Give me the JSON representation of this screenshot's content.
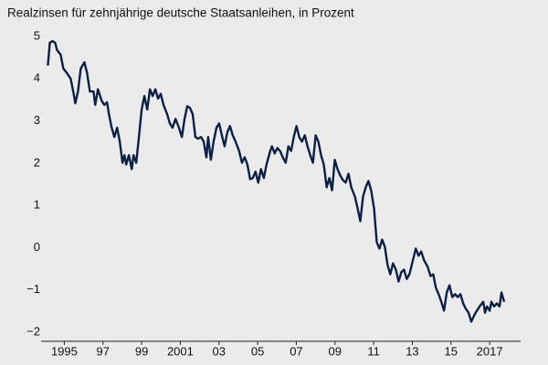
{
  "chart_data": {
    "type": "line",
    "title": "Realzinsen für zehnjährige deutsche Staatsanleihen, in Prozent",
    "x": [
      1994.15,
      1994.25,
      1994.39,
      1994.53,
      1994.62,
      1994.81,
      1994.95,
      1995.14,
      1995.33,
      1995.47,
      1995.57,
      1995.71,
      1995.85,
      1996.04,
      1996.18,
      1996.32,
      1996.51,
      1996.6,
      1996.74,
      1996.93,
      1997.07,
      1997.21,
      1997.31,
      1997.45,
      1997.59,
      1997.73,
      1997.87,
      1998.01,
      1998.11,
      1998.2,
      1998.34,
      1998.49,
      1998.58,
      1998.72,
      1998.86,
      1999.0,
      1999.14,
      1999.29,
      1999.43,
      1999.57,
      1999.71,
      1999.85,
      1999.99,
      2000.13,
      2000.32,
      2000.46,
      2000.6,
      2000.75,
      2000.93,
      2001.08,
      2001.22,
      2001.36,
      2001.5,
      2001.64,
      2001.78,
      2001.92,
      2002.07,
      2002.21,
      2002.35,
      2002.44,
      2002.58,
      2002.72,
      2002.87,
      2003.01,
      2003.15,
      2003.29,
      2003.43,
      2003.57,
      2003.71,
      2003.86,
      2004.04,
      2004.19,
      2004.33,
      2004.47,
      2004.61,
      2004.75,
      2004.89,
      2005.03,
      2005.17,
      2005.32,
      2005.46,
      2005.65,
      2005.74,
      2005.88,
      2006.02,
      2006.16,
      2006.3,
      2006.45,
      2006.59,
      2006.73,
      2006.87,
      2007.01,
      2007.15,
      2007.29,
      2007.44,
      2007.58,
      2007.72,
      2007.86,
      2008.0,
      2008.14,
      2008.28,
      2008.42,
      2008.57,
      2008.71,
      2008.85,
      2008.99,
      2009.13,
      2009.27,
      2009.41,
      2009.55,
      2009.7,
      2009.84,
      2010.03,
      2010.17,
      2010.31,
      2010.45,
      2010.59,
      2010.73,
      2010.87,
      2011.02,
      2011.16,
      2011.3,
      2011.44,
      2011.58,
      2011.72,
      2011.86,
      2012.0,
      2012.15,
      2012.29,
      2012.43,
      2012.57,
      2012.71,
      2012.85,
      2012.99,
      2013.18,
      2013.32,
      2013.46,
      2013.61,
      2013.79,
      2013.94,
      2014.08,
      2014.22,
      2014.36,
      2014.5,
      2014.64,
      2014.78,
      2014.92,
      2015.07,
      2015.21,
      2015.35,
      2015.49,
      2015.63,
      2015.77,
      2015.91,
      2016.05,
      2016.2,
      2016.34,
      2016.48,
      2016.67,
      2016.76,
      2016.86,
      2017.0,
      2017.09,
      2017.23,
      2017.37,
      2017.51,
      2017.61,
      2017.75
    ],
    "series": [
      {
        "name": "Realzinsen",
        "color": "#0c1f45",
        "values": [
          4.31,
          4.85,
          4.89,
          4.85,
          4.68,
          4.57,
          4.24,
          4.13,
          4.0,
          3.68,
          3.42,
          3.7,
          4.24,
          4.39,
          4.13,
          3.7,
          3.7,
          3.38,
          3.75,
          3.48,
          3.38,
          3.44,
          3.16,
          2.84,
          2.62,
          2.84,
          2.51,
          2.01,
          2.19,
          1.97,
          2.19,
          1.86,
          2.19,
          2.01,
          2.62,
          3.27,
          3.59,
          3.27,
          3.75,
          3.59,
          3.75,
          3.53,
          3.64,
          3.38,
          3.16,
          2.94,
          2.84,
          3.05,
          2.84,
          2.62,
          3.05,
          3.35,
          3.31,
          3.16,
          2.62,
          2.58,
          2.62,
          2.51,
          2.14,
          2.62,
          2.08,
          2.51,
          2.84,
          2.94,
          2.66,
          2.4,
          2.73,
          2.88,
          2.66,
          2.51,
          2.29,
          2.01,
          2.14,
          1.97,
          1.62,
          1.65,
          1.8,
          1.54,
          1.86,
          1.65,
          1.97,
          2.29,
          2.4,
          2.23,
          2.36,
          2.29,
          2.14,
          2.01,
          2.4,
          2.29,
          2.62,
          2.88,
          2.62,
          2.51,
          2.66,
          2.4,
          2.19,
          2.01,
          2.66,
          2.51,
          2.19,
          1.97,
          1.43,
          1.65,
          1.36,
          2.08,
          1.86,
          1.71,
          1.6,
          1.54,
          1.75,
          1.43,
          1.21,
          0.93,
          0.63,
          1.21,
          1.43,
          1.58,
          1.36,
          0.93,
          0.13,
          -0.02,
          0.19,
          0.02,
          -0.41,
          -0.63,
          -0.37,
          -0.52,
          -0.8,
          -0.58,
          -0.52,
          -0.74,
          -0.63,
          -0.37,
          -0.02,
          -0.19,
          -0.09,
          -0.3,
          -0.45,
          -0.67,
          -0.63,
          -0.95,
          -1.1,
          -1.28,
          -1.49,
          -1.06,
          -0.89,
          -1.17,
          -1.1,
          -1.17,
          -1.1,
          -1.32,
          -1.45,
          -1.54,
          -1.75,
          -1.6,
          -1.49,
          -1.39,
          -1.28,
          -1.54,
          -1.39,
          -1.49,
          -1.28,
          -1.39,
          -1.32,
          -1.39,
          -1.06,
          -1.28
        ]
      }
    ],
    "xlim": [
      1993.8,
      2018.6
    ],
    "xticks": [
      {
        "value": 1995,
        "label": "1995"
      },
      {
        "value": 1997,
        "label": "97"
      },
      {
        "value": 1999,
        "label": "99"
      },
      {
        "value": 2001,
        "label": "2001"
      },
      {
        "value": 2003,
        "label": "03"
      },
      {
        "value": 2005,
        "label": "05"
      },
      {
        "value": 2007,
        "label": "07"
      },
      {
        "value": 2009,
        "label": "09"
      },
      {
        "value": 2011,
        "label": "11"
      },
      {
        "value": 2013,
        "label": "13"
      },
      {
        "value": 2015,
        "label": "15"
      },
      {
        "value": 2017,
        "label": "2017"
      }
    ],
    "ylim": [
      -2.2,
      5.2
    ],
    "yticks": [
      5,
      4,
      3,
      2,
      1,
      0,
      {
        "value": -1,
        "label": "−1"
      },
      {
        "value": -2,
        "label": "−2"
      }
    ]
  }
}
